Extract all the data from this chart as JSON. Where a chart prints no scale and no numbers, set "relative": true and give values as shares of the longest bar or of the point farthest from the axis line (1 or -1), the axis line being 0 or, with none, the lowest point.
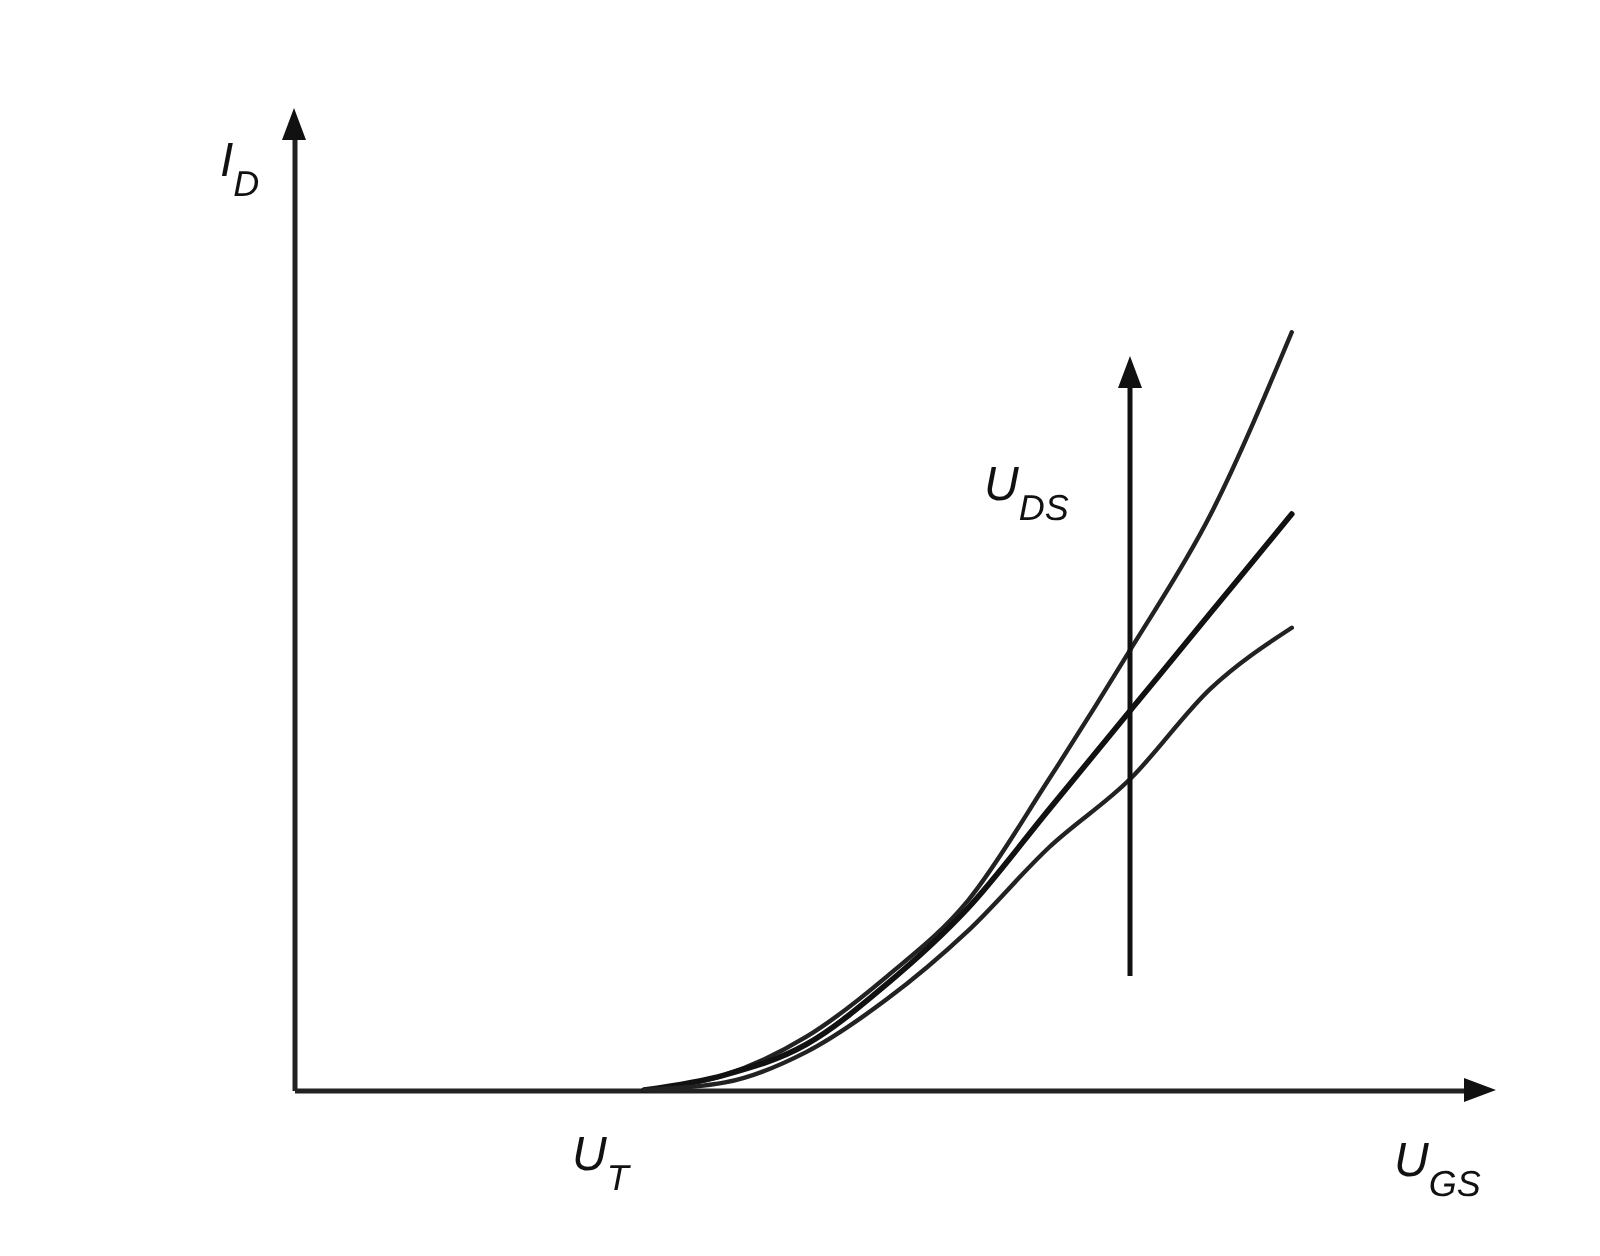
{
  "chart_data": {
    "type": "line",
    "relative": true,
    "xlabel": "U$_{GS}$",
    "ylabel": "I$_{D}$",
    "annotations": [
      "U$_{T}$",
      "U$_{DS}$"
    ],
    "line_style": "solid",
    "categories": [
      null,
      null,
      null,
      null,
      null,
      null,
      null,
      null,
      null,
      null,
      null,
      null,
      null,
      null,
      null
    ],
    "series": [
      {
        "color": "#222222",
        "values": [
          null,
          null,
          null,
          null,
          0,
          0.02,
          0.07,
          0.15,
          0.25,
          0.41,
          0.58,
          0.76,
          1,
          null,
          null
        ]
      },
      {
        "color": "#111111",
        "values": [
          null,
          null,
          null,
          null,
          0,
          0.02,
          0.06,
          0.14,
          0.24,
          0.37,
          0.5,
          0.63,
          0.76,
          null,
          null
        ]
      },
      {
        "color": "#222222",
        "values": [
          null,
          null,
          null,
          null,
          0,
          0.01,
          0.05,
          0.12,
          0.21,
          0.32,
          0.41,
          0.53,
          0.61,
          null,
          null
        ]
      }
    ]
  }
}
